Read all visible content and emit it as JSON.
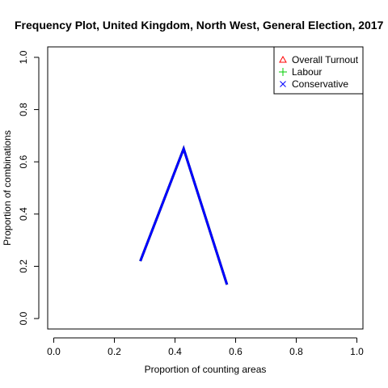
{
  "chart_data": {
    "type": "line",
    "title": "Frequency Plot, United Kingdom, North West, General Election, 2017",
    "xlabel": "Proportion of counting areas",
    "ylabel": "Proportion of combinations",
    "xlim": [
      -0.02,
      1.02
    ],
    "ylim": [
      -0.04,
      1.04
    ],
    "x_ticks": [
      0.0,
      0.2,
      0.4,
      0.6,
      0.8,
      1.0
    ],
    "x_tick_labels": [
      "0.0",
      "0.2",
      "0.4",
      "0.6",
      "0.8",
      "1.0"
    ],
    "y_ticks": [
      0.0,
      0.2,
      0.4,
      0.6,
      0.8,
      1.0
    ],
    "y_tick_labels": [
      "0.0",
      "0.2",
      "0.4",
      "0.6",
      "0.8",
      "1.0"
    ],
    "grid": false,
    "legend_position": "top-right",
    "legend": [
      {
        "label": "Overall Turnout",
        "color": "#ff0000",
        "symbol": "triangle"
      },
      {
        "label": "Labour",
        "color": "#00cd00",
        "symbol": "plus"
      },
      {
        "label": "Conservative",
        "color": "#0000ff",
        "symbol": "cross"
      }
    ],
    "series": [
      {
        "name": "Overall Turnout",
        "color": "#ff0000",
        "x": [
          0.2857,
          0.4286,
          0.5714
        ],
        "y": [
          0.22,
          0.65,
          0.13
        ]
      },
      {
        "name": "Labour",
        "color": "#00cd00",
        "x": [
          0.2857,
          0.4286,
          0.5714
        ],
        "y": [
          0.22,
          0.65,
          0.13
        ]
      },
      {
        "name": "Conservative",
        "color": "#0000ff",
        "x": [
          0.2857,
          0.4286,
          0.5714
        ],
        "y": [
          0.22,
          0.65,
          0.13
        ]
      }
    ]
  }
}
